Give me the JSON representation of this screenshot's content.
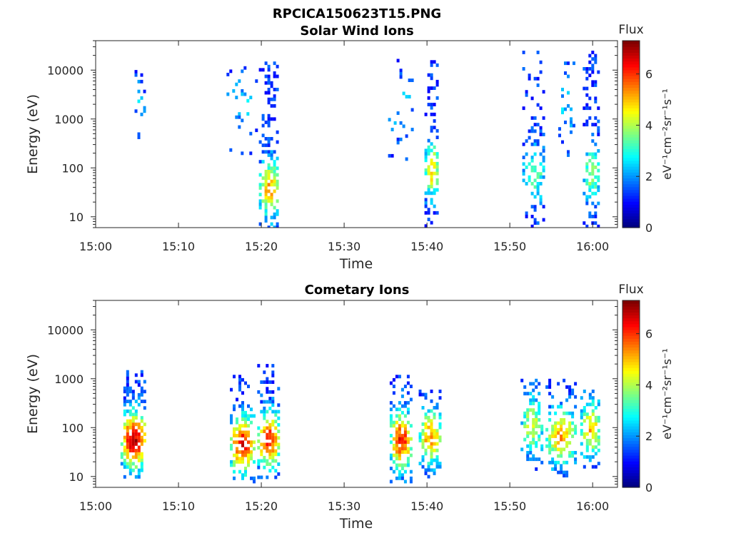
{
  "figure_title": "RPCICA150623T15.PNG",
  "chart_data": [
    {
      "type": "heatmap",
      "title": "Solar Wind Ions",
      "xlabel": "Time",
      "ylabel": "Energy (eV)",
      "y_scale": "log",
      "xlim": [
        "15:00",
        "16:03"
      ],
      "ylim": [
        6,
        40000
      ],
      "x_ticks": [
        "15:00",
        "15:10",
        "15:20",
        "15:30",
        "15:40",
        "15:50",
        "16:00"
      ],
      "y_ticks": [
        "10",
        "100",
        "1000",
        "10000"
      ],
      "colorbar": {
        "title": "Flux",
        "label": "eV⁻¹cm⁻²sr⁻¹s⁻¹",
        "range": [
          0,
          7.3
        ],
        "ticks": [
          "0",
          "2",
          "4",
          "6"
        ]
      },
      "bursts": [
        {
          "t_start": "15:04.7",
          "t_end": "15:05.8",
          "e_min": 300,
          "e_max": 16000,
          "peak_flux": 2.2,
          "core_e": 2000,
          "density": 0.25
        },
        {
          "t_start": "15:15.8",
          "t_end": "15:19.5",
          "e_min": 150,
          "e_max": 14000,
          "peak_flux": 2.3,
          "core_e": 2000,
          "density": 0.12
        },
        {
          "t_start": "15:19.7",
          "t_end": "15:22.0",
          "e_min": 6,
          "e_max": 15000,
          "peak_flux": 5.2,
          "core_e": 40,
          "density": 0.75
        },
        {
          "t_start": "15:35.3",
          "t_end": "15:38.3",
          "e_min": 150,
          "e_max": 17000,
          "peak_flux": 2.3,
          "core_e": 2000,
          "density": 0.14
        },
        {
          "t_start": "15:39.7",
          "t_end": "15:41.3",
          "e_min": 6,
          "e_max": 16000,
          "peak_flux": 4.8,
          "core_e": 100,
          "density": 0.72
        },
        {
          "t_start": "15:51.5",
          "t_end": "15:54.0",
          "e_min": 6,
          "e_max": 25000,
          "peak_flux": 3.5,
          "core_e": 80,
          "density": 0.5
        },
        {
          "t_start": "15:55.5",
          "t_end": "15:58.0",
          "e_min": 150,
          "e_max": 15000,
          "peak_flux": 2.4,
          "core_e": 2000,
          "density": 0.2
        },
        {
          "t_start": "15:58.8",
          "t_end": "16:00.6",
          "e_min": 6,
          "e_max": 25000,
          "peak_flux": 3.8,
          "core_e": 80,
          "density": 0.7
        }
      ]
    },
    {
      "type": "heatmap",
      "title": "Cometary Ions",
      "xlabel": "Time",
      "ylabel": "Energy (eV)",
      "y_scale": "log",
      "xlim": [
        "15:00",
        "16:03"
      ],
      "ylim": [
        6,
        40000
      ],
      "x_ticks": [
        "15:00",
        "15:10",
        "15:20",
        "15:30",
        "15:40",
        "15:50",
        "16:00"
      ],
      "y_ticks": [
        "10",
        "100",
        "1000",
        "10000"
      ],
      "colorbar": {
        "title": "Flux",
        "label": "eV⁻¹cm⁻²sr⁻¹s⁻¹",
        "range": [
          0,
          7.3
        ],
        "ticks": [
          "0",
          "2",
          "4",
          "6"
        ]
      },
      "bursts": [
        {
          "t_start": "15:03.0",
          "t_end": "15:06.0",
          "e_min": 10,
          "e_max": 1500,
          "peak_flux": 6.8,
          "core_e": 60,
          "density": 0.85
        },
        {
          "t_start": "15:16.2",
          "t_end": "15:19.0",
          "e_min": 8,
          "e_max": 1200,
          "peak_flux": 6.5,
          "core_e": 50,
          "density": 0.8
        },
        {
          "t_start": "15:19.5",
          "t_end": "15:22.0",
          "e_min": 10,
          "e_max": 2000,
          "peak_flux": 6.3,
          "core_e": 60,
          "density": 0.8
        },
        {
          "t_start": "15:35.5",
          "t_end": "15:38.0",
          "e_min": 8,
          "e_max": 1200,
          "peak_flux": 6.3,
          "core_e": 60,
          "density": 0.78
        },
        {
          "t_start": "15:39.0",
          "t_end": "15:41.5",
          "e_min": 10,
          "e_max": 600,
          "peak_flux": 5.3,
          "core_e": 70,
          "density": 0.75
        },
        {
          "t_start": "15:51.3",
          "t_end": "15:53.8",
          "e_min": 15,
          "e_max": 1000,
          "peak_flux": 4.2,
          "core_e": 120,
          "density": 0.6
        },
        {
          "t_start": "15:54.3",
          "t_end": "15:57.8",
          "e_min": 10,
          "e_max": 1000,
          "peak_flux": 5.2,
          "core_e": 70,
          "density": 0.65
        },
        {
          "t_start": "15:58.5",
          "t_end": "16:00.8",
          "e_min": 15,
          "e_max": 600,
          "peak_flux": 5.0,
          "core_e": 100,
          "density": 0.7
        }
      ]
    }
  ]
}
